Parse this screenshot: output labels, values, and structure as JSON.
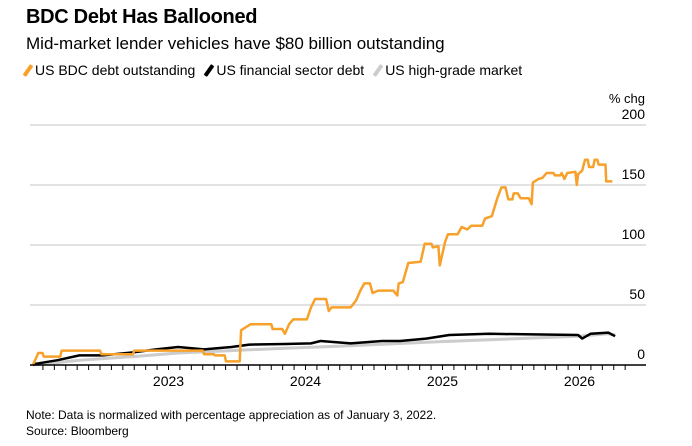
{
  "title": "BDC Debt Has Ballooned",
  "subtitle": "Mid-market lender vehicles have $80 billion outstanding",
  "note": "Note: Data is normalized with percentage appreciation as of January 3, 2022.",
  "source": "Source: Bloomberg",
  "chart_data": {
    "type": "line",
    "title": "BDC Debt Has Ballooned",
    "ylabel": "% chg",
    "xlabel": "",
    "ylim": [
      0,
      200
    ],
    "xlim": [
      2022.0,
      2026.5
    ],
    "yticks": [
      "0",
      "50",
      "100",
      "150",
      "200"
    ],
    "ytick_values": [
      0,
      50,
      100,
      150,
      200
    ],
    "xticks": [
      "2023",
      "2024",
      "2025",
      "2026"
    ],
    "xtick_values": [
      2023,
      2024,
      2025,
      2026
    ],
    "grid": true,
    "legend_position": "top-left",
    "series": [
      {
        "name": "US BDC debt outstanding",
        "color": "#f7a02a",
        "points": [
          [
            2022.01,
            0
          ],
          [
            2022.05,
            10
          ],
          [
            2022.08,
            10
          ],
          [
            2022.09,
            7
          ],
          [
            2022.21,
            7
          ],
          [
            2022.22,
            12
          ],
          [
            2022.5,
            12
          ],
          [
            2022.51,
            9
          ],
          [
            2022.74,
            9
          ],
          [
            2022.75,
            12
          ],
          [
            2023.25,
            12
          ],
          [
            2023.26,
            9
          ],
          [
            2023.33,
            9
          ],
          [
            2023.34,
            8
          ],
          [
            2023.41,
            8
          ],
          [
            2023.42,
            3
          ],
          [
            2023.52,
            3
          ],
          [
            2023.53,
            29
          ],
          [
            2023.6,
            34
          ],
          [
            2023.75,
            34
          ],
          [
            2023.76,
            30
          ],
          [
            2023.83,
            30
          ],
          [
            2023.85,
            26
          ],
          [
            2023.88,
            34
          ],
          [
            2023.91,
            38
          ],
          [
            2024.01,
            38
          ],
          [
            2024.04,
            48
          ],
          [
            2024.07,
            55
          ],
          [
            2024.15,
            55
          ],
          [
            2024.17,
            45
          ],
          [
            2024.19,
            48
          ],
          [
            2024.33,
            48
          ],
          [
            2024.37,
            54
          ],
          [
            2024.4,
            62
          ],
          [
            2024.43,
            68
          ],
          [
            2024.47,
            68
          ],
          [
            2024.49,
            60
          ],
          [
            2024.53,
            62
          ],
          [
            2024.64,
            62
          ],
          [
            2024.67,
            58
          ],
          [
            2024.68,
            68
          ],
          [
            2024.71,
            69
          ],
          [
            2024.75,
            85
          ],
          [
            2024.84,
            86
          ],
          [
            2024.87,
            101
          ],
          [
            2024.92,
            101
          ],
          [
            2024.93,
            98
          ],
          [
            2024.97,
            99
          ],
          [
            2024.98,
            83
          ],
          [
            2025.02,
            103
          ],
          [
            2025.04,
            109
          ],
          [
            2025.11,
            109
          ],
          [
            2025.14,
            115
          ],
          [
            2025.18,
            113
          ],
          [
            2025.21,
            116
          ],
          [
            2025.29,
            116
          ],
          [
            2025.31,
            122
          ],
          [
            2025.36,
            124
          ],
          [
            2025.4,
            139
          ],
          [
            2025.43,
            148
          ],
          [
            2025.46,
            148
          ],
          [
            2025.48,
            138
          ],
          [
            2025.51,
            138
          ],
          [
            2025.52,
            143
          ],
          [
            2025.55,
            143
          ],
          [
            2025.57,
            139
          ],
          [
            2025.63,
            139
          ],
          [
            2025.65,
            134
          ],
          [
            2025.66,
            152
          ],
          [
            2025.7,
            155
          ],
          [
            2025.73,
            156
          ],
          [
            2025.76,
            160
          ],
          [
            2025.81,
            160
          ],
          [
            2025.82,
            158
          ],
          [
            2025.86,
            158
          ],
          [
            2025.87,
            160
          ],
          [
            2025.89,
            155
          ],
          [
            2025.91,
            160
          ],
          [
            2025.97,
            161
          ],
          [
            2025.98,
            150
          ],
          [
            2025.99,
            159
          ],
          [
            2026.02,
            162
          ],
          [
            2026.04,
            171
          ],
          [
            2026.06,
            171
          ],
          [
            2026.07,
            165
          ],
          [
            2026.1,
            165
          ],
          [
            2026.11,
            171
          ],
          [
            2026.13,
            171
          ],
          [
            2026.14,
            167
          ],
          [
            2026.19,
            167
          ],
          [
            2026.195,
            153
          ],
          [
            2026.24,
            153
          ]
        ]
      },
      {
        "name": "US financial sector debt",
        "color": "#000000",
        "points": [
          [
            2022.01,
            0
          ],
          [
            2022.03,
            1
          ],
          [
            2022.19,
            4
          ],
          [
            2022.35,
            8
          ],
          [
            2022.52,
            8
          ],
          [
            2022.74,
            10.5
          ],
          [
            2022.91,
            13
          ],
          [
            2023.07,
            15
          ],
          [
            2023.26,
            13
          ],
          [
            2023.46,
            15
          ],
          [
            2023.59,
            17
          ],
          [
            2023.85,
            17.5
          ],
          [
            2024.04,
            18
          ],
          [
            2024.11,
            20
          ],
          [
            2024.33,
            18
          ],
          [
            2024.56,
            20
          ],
          [
            2024.69,
            20
          ],
          [
            2024.88,
            22
          ],
          [
            2025.05,
            25
          ],
          [
            2025.34,
            26
          ],
          [
            2025.66,
            25.5
          ],
          [
            2025.99,
            25
          ],
          [
            2026.02,
            22
          ],
          [
            2026.08,
            26
          ],
          [
            2026.21,
            27
          ],
          [
            2026.26,
            24
          ]
        ]
      },
      {
        "name": "US high-grade market",
        "color": "#cccccc",
        "points": [
          [
            2022.01,
            0
          ],
          [
            2022.35,
            4
          ],
          [
            2022.74,
            7
          ],
          [
            2023.07,
            10
          ],
          [
            2023.46,
            12
          ],
          [
            2023.85,
            14
          ],
          [
            2024.33,
            16
          ],
          [
            2024.88,
            19
          ],
          [
            2025.34,
            21
          ],
          [
            2025.99,
            24
          ],
          [
            2026.21,
            26
          ],
          [
            2026.26,
            25
          ]
        ]
      }
    ]
  }
}
